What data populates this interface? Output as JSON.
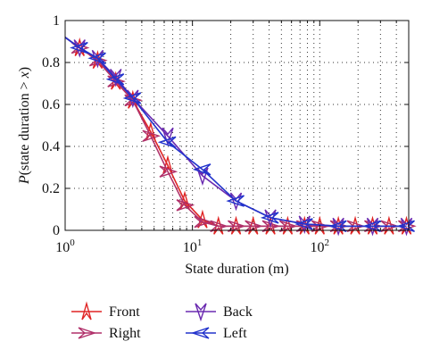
{
  "chart_data": {
    "type": "line",
    "xscale": "log",
    "xlim": [
      1,
      500
    ],
    "ylim": [
      0,
      1
    ],
    "xlabel": "State duration (m)",
    "ylabel_prefix": "P",
    "ylabel_rest": "(state duration > ",
    "ylabel_var": "x",
    "ylabel_close": ")",
    "xticks": [
      {
        "value": 1,
        "base": "10",
        "exp": "0"
      },
      {
        "value": 10,
        "base": "10",
        "exp": "1"
      },
      {
        "value": 100,
        "base": "10",
        "exp": "2"
      }
    ],
    "yticks": [
      {
        "value": 0,
        "label": "0"
      },
      {
        "value": 0.2,
        "label": "0.2"
      },
      {
        "value": 0.4,
        "label": "0.4"
      },
      {
        "value": 0.6,
        "label": "0.6"
      },
      {
        "value": 0.8,
        "label": "0.8"
      },
      {
        "value": 1,
        "label": "1"
      }
    ],
    "grid": "dotted",
    "series": [
      {
        "name": "Front",
        "color": "#e02424",
        "marker": "star",
        "x": [
          1.0,
          1.3,
          1.8,
          2.5,
          3.4,
          4.7,
          6.4,
          8.7,
          12,
          16,
          22,
          30,
          41,
          56,
          76,
          100,
          140,
          190,
          260,
          350,
          480
        ],
        "y": [
          0.92,
          0.87,
          0.81,
          0.71,
          0.62,
          0.47,
          0.31,
          0.14,
          0.05,
          0.02,
          0.02,
          0.02,
          0.02,
          0.02,
          0.02,
          0.02,
          0.02,
          0.02,
          0.02,
          0.02,
          0.02
        ]
      },
      {
        "name": "Right",
        "color": "#b0306a",
        "marker": "right",
        "x": [
          1.0,
          1.3,
          1.8,
          2.5,
          3.4,
          4.7,
          6.4,
          8.7,
          12,
          16,
          22,
          30,
          41,
          56,
          76,
          100,
          140,
          190,
          260,
          350,
          480
        ],
        "y": [
          0.92,
          0.87,
          0.81,
          0.71,
          0.62,
          0.45,
          0.28,
          0.12,
          0.04,
          0.02,
          0.02,
          0.02,
          0.02,
          0.02,
          0.02,
          0.02,
          0.02,
          0.02,
          0.02,
          0.02,
          0.02
        ]
      },
      {
        "name": "Back",
        "color": "#6a2ab0",
        "marker": "down",
        "x": [
          1.0,
          1.3,
          1.8,
          2.5,
          3.4,
          6.4,
          12,
          22,
          41,
          76,
          140,
          260,
          480
        ],
        "y": [
          0.92,
          0.87,
          0.82,
          0.73,
          0.63,
          0.45,
          0.26,
          0.14,
          0.06,
          0.03,
          0.02,
          0.02,
          0.02
        ]
      },
      {
        "name": "Left",
        "color": "#2233cc",
        "marker": "left",
        "x": [
          1.0,
          1.3,
          1.8,
          2.5,
          3.4,
          6.4,
          12,
          22,
          41,
          76,
          140,
          260,
          480
        ],
        "y": [
          0.92,
          0.87,
          0.82,
          0.72,
          0.63,
          0.42,
          0.29,
          0.14,
          0.06,
          0.03,
          0.02,
          0.02,
          0.02
        ]
      }
    ],
    "legend": {
      "placement": "bottom",
      "entries": [
        "Front",
        "Right",
        "Back",
        "Left"
      ]
    }
  }
}
